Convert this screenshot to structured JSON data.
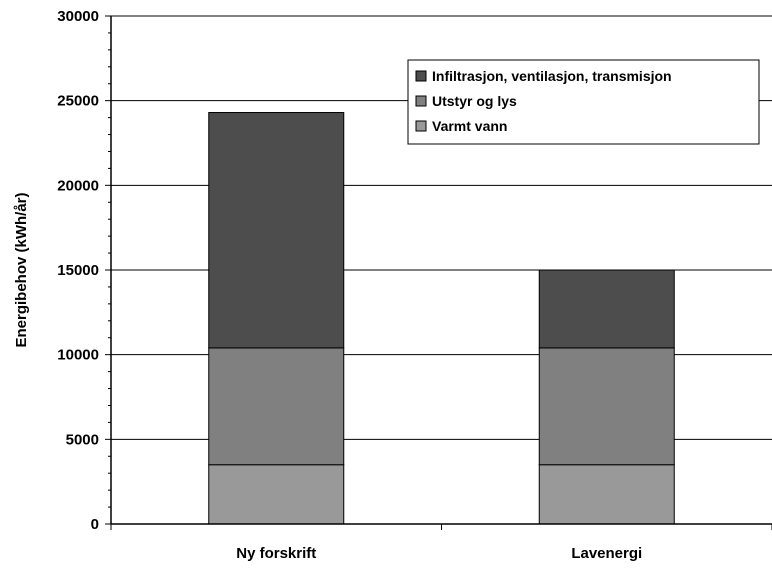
{
  "chart_data": {
    "type": "bar",
    "stacked": true,
    "categories": [
      "Ny forskrift",
      "Lavenergi"
    ],
    "series": [
      {
        "name": "Varmt vann",
        "values": [
          3500,
          3500
        ],
        "color": "#999999"
      },
      {
        "name": "Utstyr og lys",
        "values": [
          6900,
          6900
        ],
        "color": "#808080"
      },
      {
        "name": "Infiltrasjon, ventilasjon, transmisjon",
        "values": [
          13900,
          4600
        ],
        "color": "#4d4d4d"
      }
    ],
    "ylabel": "Energibehov (kWh/år)",
    "xlabel": "",
    "ylim": [
      0,
      30000
    ],
    "yticks": [
      "0",
      "5000",
      "10000",
      "15000",
      "20000",
      "25000",
      "30000"
    ],
    "ytick_values": [
      0,
      5000,
      10000,
      15000,
      20000,
      25000,
      30000
    ],
    "grid": true,
    "legend_position": "top-right",
    "legend_order": [
      "Infiltrasjon, ventilasjon, transmisjon",
      "Utstyr og lys",
      "Varmt vann"
    ]
  }
}
